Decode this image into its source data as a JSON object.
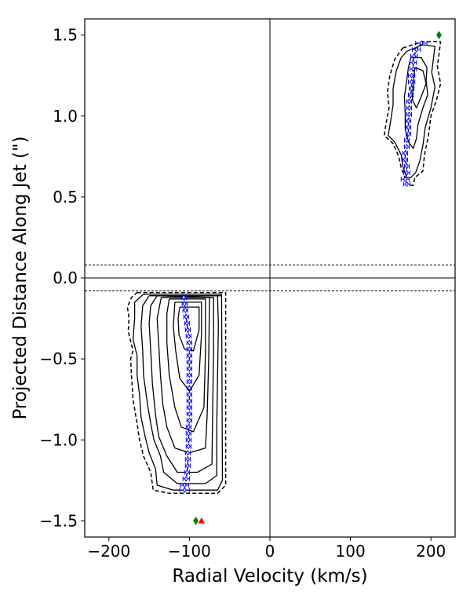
{
  "chart_data": {
    "type": "line",
    "xlabel": "Radial Velocity (km/s)",
    "ylabel": "Projected Distance Along Jet (\")",
    "xlim": [
      -230,
      230
    ],
    "ylim": [
      -1.6,
      1.6
    ],
    "x_ticks": [
      -200,
      -100,
      0,
      100,
      200
    ],
    "y_ticks": [
      -1.5,
      -1.0,
      -0.5,
      0.0,
      0.5,
      1.0,
      1.5
    ],
    "x_tick_labels": [
      "−200",
      "−100",
      "0",
      "100",
      "200"
    ],
    "y_tick_labels": [
      "−1.5",
      "−1.0",
      "−0.5",
      "0.0",
      "0.5",
      "1.0",
      "1.5"
    ],
    "grid": false,
    "reference_lines": {
      "solid_horizontal": [
        0.0
      ],
      "solid_vertical": [
        0
      ],
      "dashed_horizontal": [
        0.08,
        -0.08
      ]
    },
    "colors": {
      "contours": "#000000",
      "centroids": "#0000ff",
      "diamond_marker": "#008000",
      "triangle_marker": "#ff0000"
    },
    "contours_red_lobe": [
      {
        "style": "dashed",
        "points": [
          [
            165,
            1.42
          ],
          [
            190,
            1.46
          ],
          [
            212,
            1.46
          ],
          [
            210,
            1.38
          ],
          [
            208,
            1.31
          ],
          [
            212,
            1.2
          ],
          [
            207,
            1.1
          ],
          [
            200,
            1.0
          ],
          [
            197,
            0.88
          ],
          [
            192,
            0.76
          ],
          [
            190,
            0.66
          ],
          [
            180,
            0.62
          ],
          [
            178,
            0.57
          ],
          [
            170,
            0.58
          ],
          [
            167,
            0.63
          ],
          [
            163,
            0.68
          ],
          [
            160,
            0.75
          ],
          [
            153,
            0.83
          ],
          [
            142,
            0.88
          ],
          [
            144,
            0.95
          ],
          [
            148,
            1.05
          ],
          [
            146,
            1.15
          ],
          [
            149,
            1.25
          ],
          [
            155,
            1.35
          ],
          [
            165,
            1.42
          ]
        ]
      },
      {
        "style": "solid",
        "points": [
          [
            170,
            1.4
          ],
          [
            190,
            1.44
          ],
          [
            205,
            1.43
          ],
          [
            203,
            1.35
          ],
          [
            201,
            1.27
          ],
          [
            205,
            1.18
          ],
          [
            200,
            1.05
          ],
          [
            193,
            0.93
          ],
          [
            190,
            0.82
          ],
          [
            186,
            0.72
          ],
          [
            181,
            0.65
          ],
          [
            175,
            0.62
          ],
          [
            170,
            0.62
          ],
          [
            165,
            0.69
          ],
          [
            163,
            0.76
          ],
          [
            155,
            0.84
          ],
          [
            147,
            0.88
          ],
          [
            150,
            0.97
          ],
          [
            153,
            1.07
          ],
          [
            153,
            1.17
          ],
          [
            157,
            1.28
          ],
          [
            163,
            1.36
          ],
          [
            170,
            1.4
          ]
        ]
      },
      {
        "style": "solid",
        "points": [
          [
            175,
            1.36
          ],
          [
            188,
            1.36
          ],
          [
            195,
            1.3
          ],
          [
            194,
            1.22
          ],
          [
            196,
            1.13
          ],
          [
            190,
            1.05
          ],
          [
            184,
            0.95
          ],
          [
            182,
            0.86
          ],
          [
            178,
            0.8
          ],
          [
            172,
            0.84
          ],
          [
            168,
            0.92
          ],
          [
            168,
            1.02
          ],
          [
            167,
            1.12
          ],
          [
            170,
            1.22
          ],
          [
            172,
            1.3
          ],
          [
            175,
            1.36
          ]
        ]
      },
      {
        "style": "solid",
        "points": [
          [
            180,
            1.3
          ],
          [
            190,
            1.28
          ],
          [
            194,
            1.2
          ],
          [
            188,
            1.12
          ],
          [
            182,
            1.05
          ],
          [
            177,
            1.1
          ],
          [
            178,
            1.2
          ],
          [
            180,
            1.3
          ]
        ]
      }
    ],
    "contours_blue_lobe": [
      {
        "style": "dashed",
        "points": [
          [
            -165,
            -0.09
          ],
          [
            -55,
            -0.09
          ],
          [
            -55,
            -1.28
          ],
          [
            -65,
            -1.33
          ],
          [
            -105,
            -1.33
          ],
          [
            -125,
            -1.33
          ],
          [
            -145,
            -1.31
          ],
          [
            -148,
            -1.2
          ],
          [
            -157,
            -1.1
          ],
          [
            -162,
            -1.0
          ],
          [
            -165,
            -0.9
          ],
          [
            -170,
            -0.75
          ],
          [
            -172,
            -0.6
          ],
          [
            -173,
            -0.5
          ],
          [
            -170,
            -0.45
          ],
          [
            -176,
            -0.33
          ],
          [
            -175,
            -0.25
          ],
          [
            -177,
            -0.18
          ],
          [
            -172,
            -0.12
          ],
          [
            -165,
            -0.09
          ]
        ]
      },
      {
        "style": "solid",
        "points": [
          [
            -157,
            -0.1
          ],
          [
            -60,
            -0.1
          ],
          [
            -59,
            -1.25
          ],
          [
            -65,
            -1.31
          ],
          [
            -120,
            -1.31
          ],
          [
            -140,
            -1.28
          ],
          [
            -142,
            -1.18
          ],
          [
            -150,
            -1.08
          ],
          [
            -155,
            -0.98
          ],
          [
            -160,
            -0.86
          ],
          [
            -162,
            -0.72
          ],
          [
            -165,
            -0.6
          ],
          [
            -165,
            -0.48
          ],
          [
            -170,
            -0.38
          ],
          [
            -168,
            -0.25
          ],
          [
            -168,
            -0.15
          ],
          [
            -157,
            -0.1
          ]
        ]
      },
      {
        "style": "solid",
        "points": [
          [
            -150,
            -0.11
          ],
          [
            -65,
            -0.11
          ],
          [
            -64,
            -0.3
          ],
          [
            -66,
            -0.9
          ],
          [
            -66,
            -1.22
          ],
          [
            -80,
            -1.27
          ],
          [
            -115,
            -1.27
          ],
          [
            -132,
            -1.2
          ],
          [
            -136,
            -1.1
          ],
          [
            -144,
            -1.0
          ],
          [
            -148,
            -0.9
          ],
          [
            -152,
            -0.78
          ],
          [
            -157,
            -0.6
          ],
          [
            -158,
            -0.45
          ],
          [
            -160,
            -0.3
          ],
          [
            -158,
            -0.17
          ],
          [
            -150,
            -0.11
          ]
        ]
      },
      {
        "style": "solid",
        "points": [
          [
            -140,
            -0.11
          ],
          [
            -70,
            -0.12
          ],
          [
            -70,
            -0.45
          ],
          [
            -71,
            -0.8
          ],
          [
            -72,
            -1.15
          ],
          [
            -90,
            -1.2
          ],
          [
            -115,
            -1.2
          ],
          [
            -128,
            -1.1
          ],
          [
            -138,
            -0.98
          ],
          [
            -142,
            -0.85
          ],
          [
            -146,
            -0.65
          ],
          [
            -148,
            -0.45
          ],
          [
            -150,
            -0.28
          ],
          [
            -148,
            -0.17
          ],
          [
            -140,
            -0.11
          ]
        ]
      },
      {
        "style": "solid",
        "points": [
          [
            -135,
            -0.12
          ],
          [
            -75,
            -0.12
          ],
          [
            -76,
            -0.5
          ],
          [
            -78,
            -0.85
          ],
          [
            -80,
            -1.05
          ],
          [
            -100,
            -1.08
          ],
          [
            -118,
            -1.05
          ],
          [
            -128,
            -0.92
          ],
          [
            -133,
            -0.78
          ],
          [
            -136,
            -0.6
          ],
          [
            -138,
            -0.42
          ],
          [
            -140,
            -0.25
          ],
          [
            -135,
            -0.12
          ]
        ]
      },
      {
        "style": "solid",
        "points": [
          [
            -125,
            -0.13
          ],
          [
            -80,
            -0.13
          ],
          [
            -80,
            -0.45
          ],
          [
            -82,
            -0.8
          ],
          [
            -95,
            -0.95
          ],
          [
            -110,
            -0.92
          ],
          [
            -118,
            -0.8
          ],
          [
            -125,
            -0.6
          ],
          [
            -128,
            -0.4
          ],
          [
            -128,
            -0.22
          ],
          [
            -125,
            -0.13
          ]
        ]
      },
      {
        "style": "solid",
        "points": [
          [
            -118,
            -0.15
          ],
          [
            -85,
            -0.15
          ],
          [
            -85,
            -0.35
          ],
          [
            -88,
            -0.6
          ],
          [
            -100,
            -0.7
          ],
          [
            -112,
            -0.62
          ],
          [
            -117,
            -0.45
          ],
          [
            -120,
            -0.3
          ],
          [
            -118,
            -0.15
          ]
        ]
      },
      {
        "style": "solid",
        "points": [
          [
            -112,
            -0.18
          ],
          [
            -88,
            -0.18
          ],
          [
            -88,
            -0.32
          ],
          [
            -95,
            -0.45
          ],
          [
            -106,
            -0.44
          ],
          [
            -113,
            -0.35
          ],
          [
            -114,
            -0.25
          ],
          [
            -112,
            -0.18
          ]
        ]
      },
      {
        "style": "solid",
        "points": [
          [
            -140,
            -0.11
          ],
          [
            -90,
            -0.11
          ],
          [
            -75,
            -0.11
          ],
          [
            -60,
            -0.11
          ]
        ]
      }
    ],
    "series": [
      {
        "marker": "diamond-errorbar",
        "points": [
          [
            188,
            1.45
          ],
          [
            182,
            1.41
          ],
          [
            179,
            1.37
          ],
          [
            178,
            1.33
          ],
          [
            178,
            1.29
          ],
          [
            176,
            1.25
          ],
          [
            176,
            1.21
          ],
          [
            176,
            1.17
          ],
          [
            175,
            1.13
          ],
          [
            173,
            1.09
          ],
          [
            173,
            1.05
          ],
          [
            173,
            1.01
          ],
          [
            172,
            0.97
          ],
          [
            172,
            0.93
          ],
          [
            172,
            0.89
          ],
          [
            170,
            0.85
          ],
          [
            170,
            0.81
          ],
          [
            168,
            0.77
          ],
          [
            168,
            0.73
          ],
          [
            170,
            0.69
          ],
          [
            170,
            0.65
          ],
          [
            168,
            0.61
          ],
          [
            170,
            0.58
          ]
        ],
        "xerr": [
          7,
          5,
          4,
          4,
          4,
          4,
          4,
          3,
          3,
          3,
          3,
          3,
          3,
          3,
          3,
          3,
          3,
          3,
          3,
          3,
          4,
          5,
          4
        ]
      },
      {
        "marker": "diamond-errorbar",
        "points": [
          [
            -107,
            -0.12
          ],
          [
            -106,
            -0.16
          ],
          [
            -105,
            -0.2
          ],
          [
            -104,
            -0.24
          ],
          [
            -103,
            -0.28
          ],
          [
            -102,
            -0.32
          ],
          [
            -101,
            -0.36
          ],
          [
            -100,
            -0.4
          ],
          [
            -100,
            -0.44
          ],
          [
            -100,
            -0.48
          ],
          [
            -100,
            -0.52
          ],
          [
            -100,
            -0.56
          ],
          [
            -100,
            -0.6
          ],
          [
            -100,
            -0.64
          ],
          [
            -100,
            -0.68
          ],
          [
            -100,
            -0.72
          ],
          [
            -100,
            -0.76
          ],
          [
            -100,
            -0.8
          ],
          [
            -100,
            -0.84
          ],
          [
            -100,
            -0.88
          ],
          [
            -101,
            -0.92
          ],
          [
            -101,
            -0.96
          ],
          [
            -101,
            -1.0
          ],
          [
            -101,
            -1.04
          ],
          [
            -102,
            -1.08
          ],
          [
            -102,
            -1.12
          ],
          [
            -102,
            -1.16
          ],
          [
            -103,
            -1.2
          ],
          [
            -104,
            -1.24
          ],
          [
            -106,
            -1.28
          ],
          [
            -106,
            -1.31
          ]
        ],
        "xerr": [
          3,
          3,
          3,
          3,
          3,
          3,
          3,
          3,
          3,
          3,
          3,
          3,
          3,
          3,
          3,
          3,
          3,
          3,
          3,
          3,
          3,
          3,
          3,
          3,
          3,
          3,
          3,
          3,
          4,
          5,
          6
        ]
      }
    ],
    "markers": [
      {
        "shape": "diamond",
        "color": "#008000",
        "x": 210,
        "y": 1.5
      },
      {
        "shape": "diamond",
        "color": "#008000",
        "x": -92,
        "y": -1.5
      },
      {
        "shape": "triangle",
        "color": "#ff0000",
        "x": -85,
        "y": -1.5
      }
    ]
  }
}
